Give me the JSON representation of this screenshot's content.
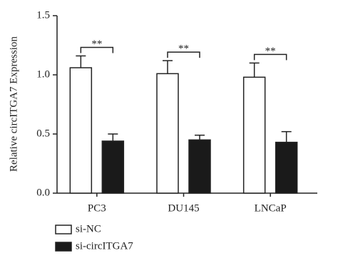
{
  "chart_data": {
    "type": "bar",
    "ylabel": "Relative circITGA7 Expression",
    "categories": [
      "PC3",
      "DU145",
      "LNCaP"
    ],
    "series": [
      {
        "name": "si-NC",
        "color": "#ffffff",
        "values": [
          1.06,
          1.01,
          0.98
        ],
        "errors": [
          0.1,
          0.11,
          0.12
        ]
      },
      {
        "name": "si-circITGA7",
        "color": "#1a1a1a",
        "values": [
          0.44,
          0.45,
          0.43
        ],
        "errors": [
          0.06,
          0.04,
          0.09
        ]
      }
    ],
    "annotations": [
      "**",
      "**",
      "**"
    ],
    "ylim": [
      0,
      1.5
    ],
    "yticks": [
      {
        "value": 0,
        "label": "0.0"
      },
      0.5,
      {
        "value": 1,
        "label": "1.0"
      },
      1.5
    ],
    "legend": "bottom-left"
  }
}
